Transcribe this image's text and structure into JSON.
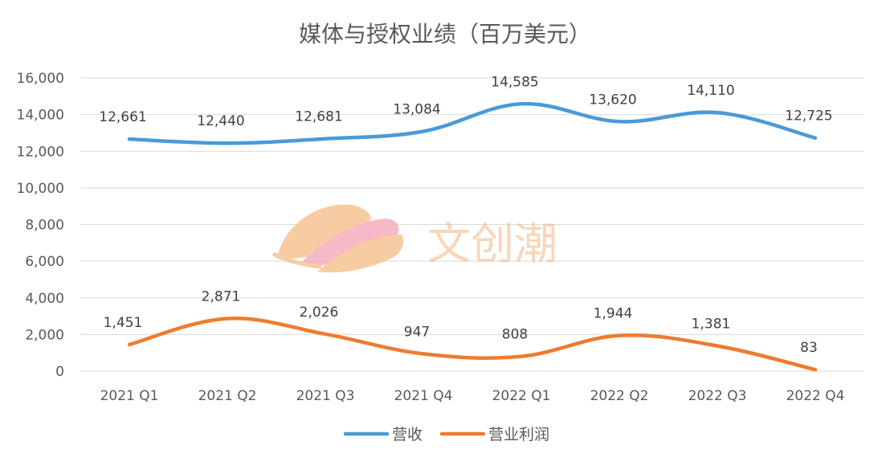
{
  "chart_data": {
    "type": "line",
    "title": "媒体与授权业绩（百万美元）",
    "categories": [
      "2021 Q1",
      "2021 Q2",
      "2021 Q3",
      "2021 Q4",
      "2022 Q1",
      "2022 Q2",
      "2022 Q3",
      "2022 Q4"
    ],
    "series": [
      {
        "name": "营收",
        "color": "#4a9ad8",
        "values": [
          12661,
          12440,
          12681,
          13084,
          14585,
          13620,
          14110,
          12725
        ],
        "labels": [
          "12,661",
          "12,440",
          "12,681",
          "13,084",
          "14,585",
          "13,620",
          "14,110",
          "12,725"
        ]
      },
      {
        "name": "营业利润",
        "color": "#ec7c30",
        "values": [
          1451,
          2871,
          2026,
          947,
          808,
          1944,
          1381,
          83
        ],
        "labels": [
          "1,451",
          "2,871",
          "2,026",
          "947",
          "808",
          "1,944",
          "1,381",
          "83"
        ]
      }
    ],
    "ylim": [
      0,
      16000
    ],
    "yticks": [
      0,
      2000,
      4000,
      6000,
      8000,
      10000,
      12000,
      14000,
      16000
    ],
    "ytick_labels": [
      "0",
      "2,000",
      "4,000",
      "6,000",
      "8,000",
      "10,000",
      "12,000",
      "14,000",
      "16,000"
    ],
    "grid": true,
    "legend_position": "bottom"
  },
  "watermark": {
    "text": "文创潮",
    "icon": "leaf-logo"
  }
}
